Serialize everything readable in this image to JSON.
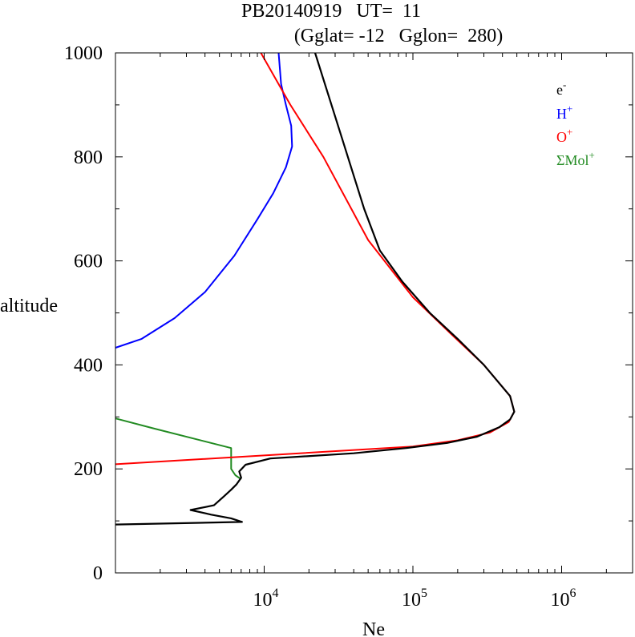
{
  "chart_data": {
    "type": "line",
    "title_line1": "PB20140919   UT=  11",
    "title_line2": "(Gglat= -12   Gglon=  280)",
    "xlabel": "Ne",
    "ylabel": "altitude",
    "x_scale": "log",
    "xlim": [
      1000,
      3000000
    ],
    "ylim": [
      0,
      1000
    ],
    "x_ticks": [
      {
        "base": "10",
        "exp": "4",
        "value": 10000
      },
      {
        "base": "10",
        "exp": "5",
        "value": 100000
      },
      {
        "base": "10",
        "exp": "6",
        "value": 1000000
      }
    ],
    "y_ticks": [
      "0",
      "200",
      "400",
      "600",
      "800",
      "1000"
    ],
    "grid": false,
    "legend_position": "top-right",
    "series": [
      {
        "name": "e",
        "name_sup": "-",
        "color": "#000000",
        "points": [
          [
            1000,
            93
          ],
          [
            7100,
            98
          ],
          [
            6000,
            105
          ],
          [
            4400,
            112
          ],
          [
            3200,
            121
          ],
          [
            4600,
            130
          ],
          [
            5400,
            148
          ],
          [
            6000,
            160
          ],
          [
            6500,
            170
          ],
          [
            7000,
            183
          ],
          [
            6800,
            195
          ],
          [
            7500,
            208
          ],
          [
            11000,
            220
          ],
          [
            40000,
            230
          ],
          [
            90000,
            240
          ],
          [
            170000,
            250
          ],
          [
            270000,
            262
          ],
          [
            380000,
            280
          ],
          [
            450000,
            295
          ],
          [
            480000,
            310
          ],
          [
            450000,
            340
          ],
          [
            300000,
            400
          ],
          [
            200000,
            450
          ],
          [
            130000,
            500
          ],
          [
            85000,
            560
          ],
          [
            60000,
            620
          ],
          [
            47000,
            700
          ],
          [
            33000,
            840
          ],
          [
            22000,
            1000
          ]
        ]
      },
      {
        "name": "H",
        "name_sup": "+",
        "color": "#0000ff",
        "points": [
          [
            1000,
            433
          ],
          [
            1500,
            450
          ],
          [
            2500,
            490
          ],
          [
            4000,
            540
          ],
          [
            6300,
            610
          ],
          [
            9000,
            680
          ],
          [
            11500,
            730
          ],
          [
            14000,
            780
          ],
          [
            15400,
            820
          ],
          [
            15200,
            860
          ],
          [
            14000,
            900
          ],
          [
            13000,
            940
          ],
          [
            12500,
            1000
          ]
        ]
      },
      {
        "name": "O",
        "name_sup": "+",
        "color": "#ff0000",
        "points": [
          [
            1000,
            209
          ],
          [
            100000,
            243
          ],
          [
            200000,
            255
          ],
          [
            330000,
            270
          ],
          [
            440000,
            290
          ],
          [
            480000,
            310
          ],
          [
            450000,
            340
          ],
          [
            300000,
            400
          ],
          [
            180000,
            460
          ],
          [
            100000,
            530
          ],
          [
            50000,
            640
          ],
          [
            25000,
            800
          ],
          [
            15000,
            900
          ],
          [
            9500,
            1000
          ]
        ]
      },
      {
        "name": "ΣMol",
        "name_sup": "+",
        "color": "#228b22",
        "points": [
          [
            1000,
            297
          ],
          [
            1800,
            278
          ],
          [
            3500,
            257
          ],
          [
            6000,
            240
          ],
          [
            6000,
            200
          ],
          [
            6400,
            188
          ],
          [
            7000,
            180
          ]
        ]
      }
    ]
  }
}
